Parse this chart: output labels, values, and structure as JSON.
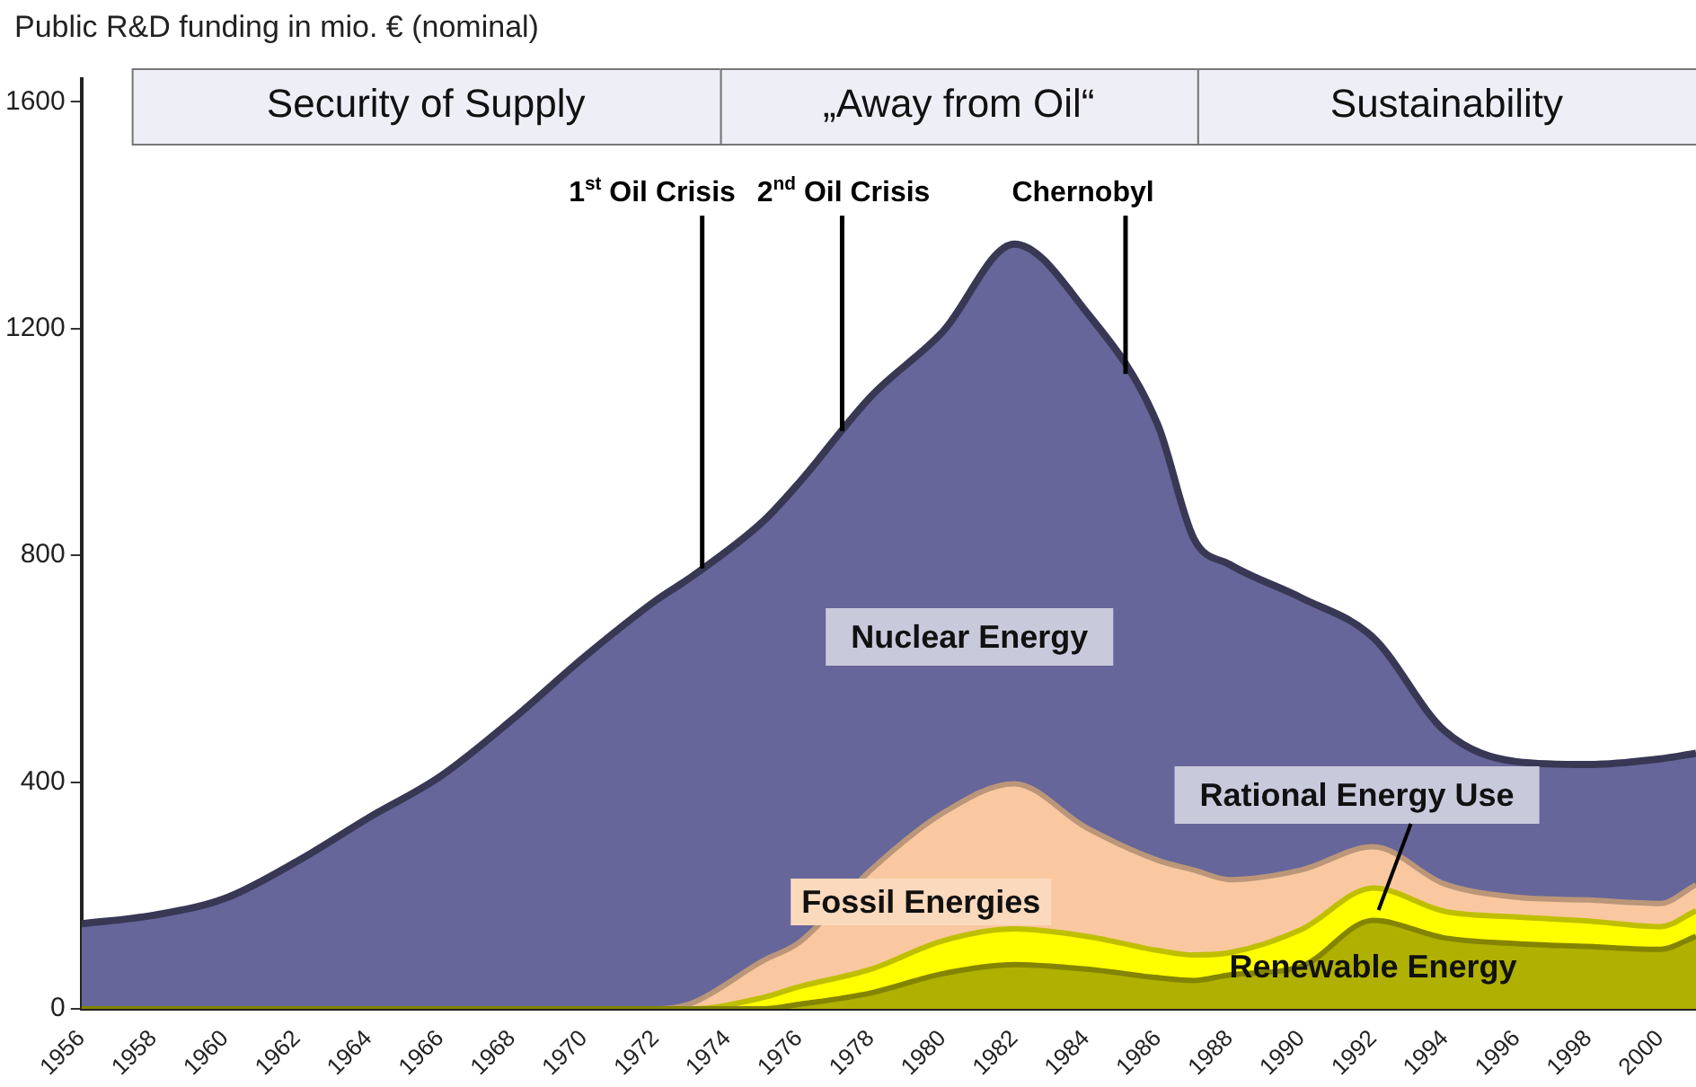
{
  "chart_data": {
    "type": "area",
    "stacked": true,
    "ylabel": "Public R&D funding in mio. € (nominal)",
    "x": [
      1956,
      1958,
      1960,
      1962,
      1964,
      1966,
      1968,
      1970,
      1972,
      1973,
      1975,
      1976,
      1978,
      1980,
      1982,
      1984,
      1986,
      1987,
      1988,
      1990,
      1992,
      1994,
      1996,
      1998,
      2000,
      2001
    ],
    "series": [
      {
        "name": "Renewable Energy",
        "color": "#b0b000",
        "values": [
          0,
          0,
          0,
          0,
          0,
          0,
          0,
          0,
          0,
          0,
          0,
          8,
          28,
          62,
          78,
          70,
          55,
          50,
          60,
          75,
          156,
          125,
          115,
          110,
          105,
          128
        ]
      },
      {
        "name": "Rational Energy Use",
        "color": "#ffff00",
        "values": [
          0,
          0,
          0,
          0,
          0,
          0,
          0,
          0,
          0,
          0,
          20,
          31,
          42,
          58,
          63,
          58,
          48,
          45,
          39,
          65,
          57,
          47,
          47,
          45,
          40,
          45
        ]
      },
      {
        "name": "Fossil Energies",
        "color": "#f9c8a0",
        "values": [
          0,
          0,
          0,
          0,
          0,
          0,
          0,
          0,
          0,
          10,
          65,
          78,
          175,
          225,
          256,
          192,
          159,
          150,
          129,
          105,
          73,
          48,
          35,
          37,
          41,
          46
        ]
      },
      {
        "name": "Nuclear Energy",
        "color": "#66669a",
        "values": [
          150,
          165,
          195,
          260,
          337,
          410,
          510,
          620,
          720,
          752,
          775,
          811,
          835,
          849,
          952,
          910,
          768,
          585,
          556,
          480,
          369,
          270,
          239,
          239,
          255,
          232
        ]
      }
    ],
    "xlim": [
      1956,
      2001
    ],
    "xticks": [
      1956,
      1958,
      1960,
      1962,
      1964,
      1966,
      1968,
      1970,
      1972,
      1974,
      1976,
      1978,
      1980,
      1982,
      1984,
      1986,
      1988,
      1990,
      1992,
      1994,
      1996,
      1998,
      2000
    ],
    "ylim": [
      0,
      1640
    ],
    "yticks": [
      0,
      400,
      800,
      1200,
      1600
    ],
    "ref_lines": [
      {
        "axis": "x",
        "value": 1973.3,
        "label": "1$^{st}$ Oil Crisis"
      },
      {
        "axis": "x",
        "value": 1977.2,
        "label": "2$^{nd}$ Oil Crisis"
      },
      {
        "axis": "x",
        "value": 1985.1,
        "label": "Chernobyl"
      }
    ],
    "bands": [
      {
        "axis": "x",
        "from": 1957.4,
        "to": 1973.8,
        "label": "Security of Supply",
        "color": "#eeeef6"
      },
      {
        "axis": "x",
        "from": 1973.8,
        "to": 1987.1,
        "label": "„Away from Oil“",
        "color": "#eeeef6"
      },
      {
        "axis": "x",
        "from": 1987.1,
        "to": 2001,
        "label": "Sustainability",
        "color": "#eeeef6"
      }
    ],
    "grid": false,
    "legend": false
  }
}
